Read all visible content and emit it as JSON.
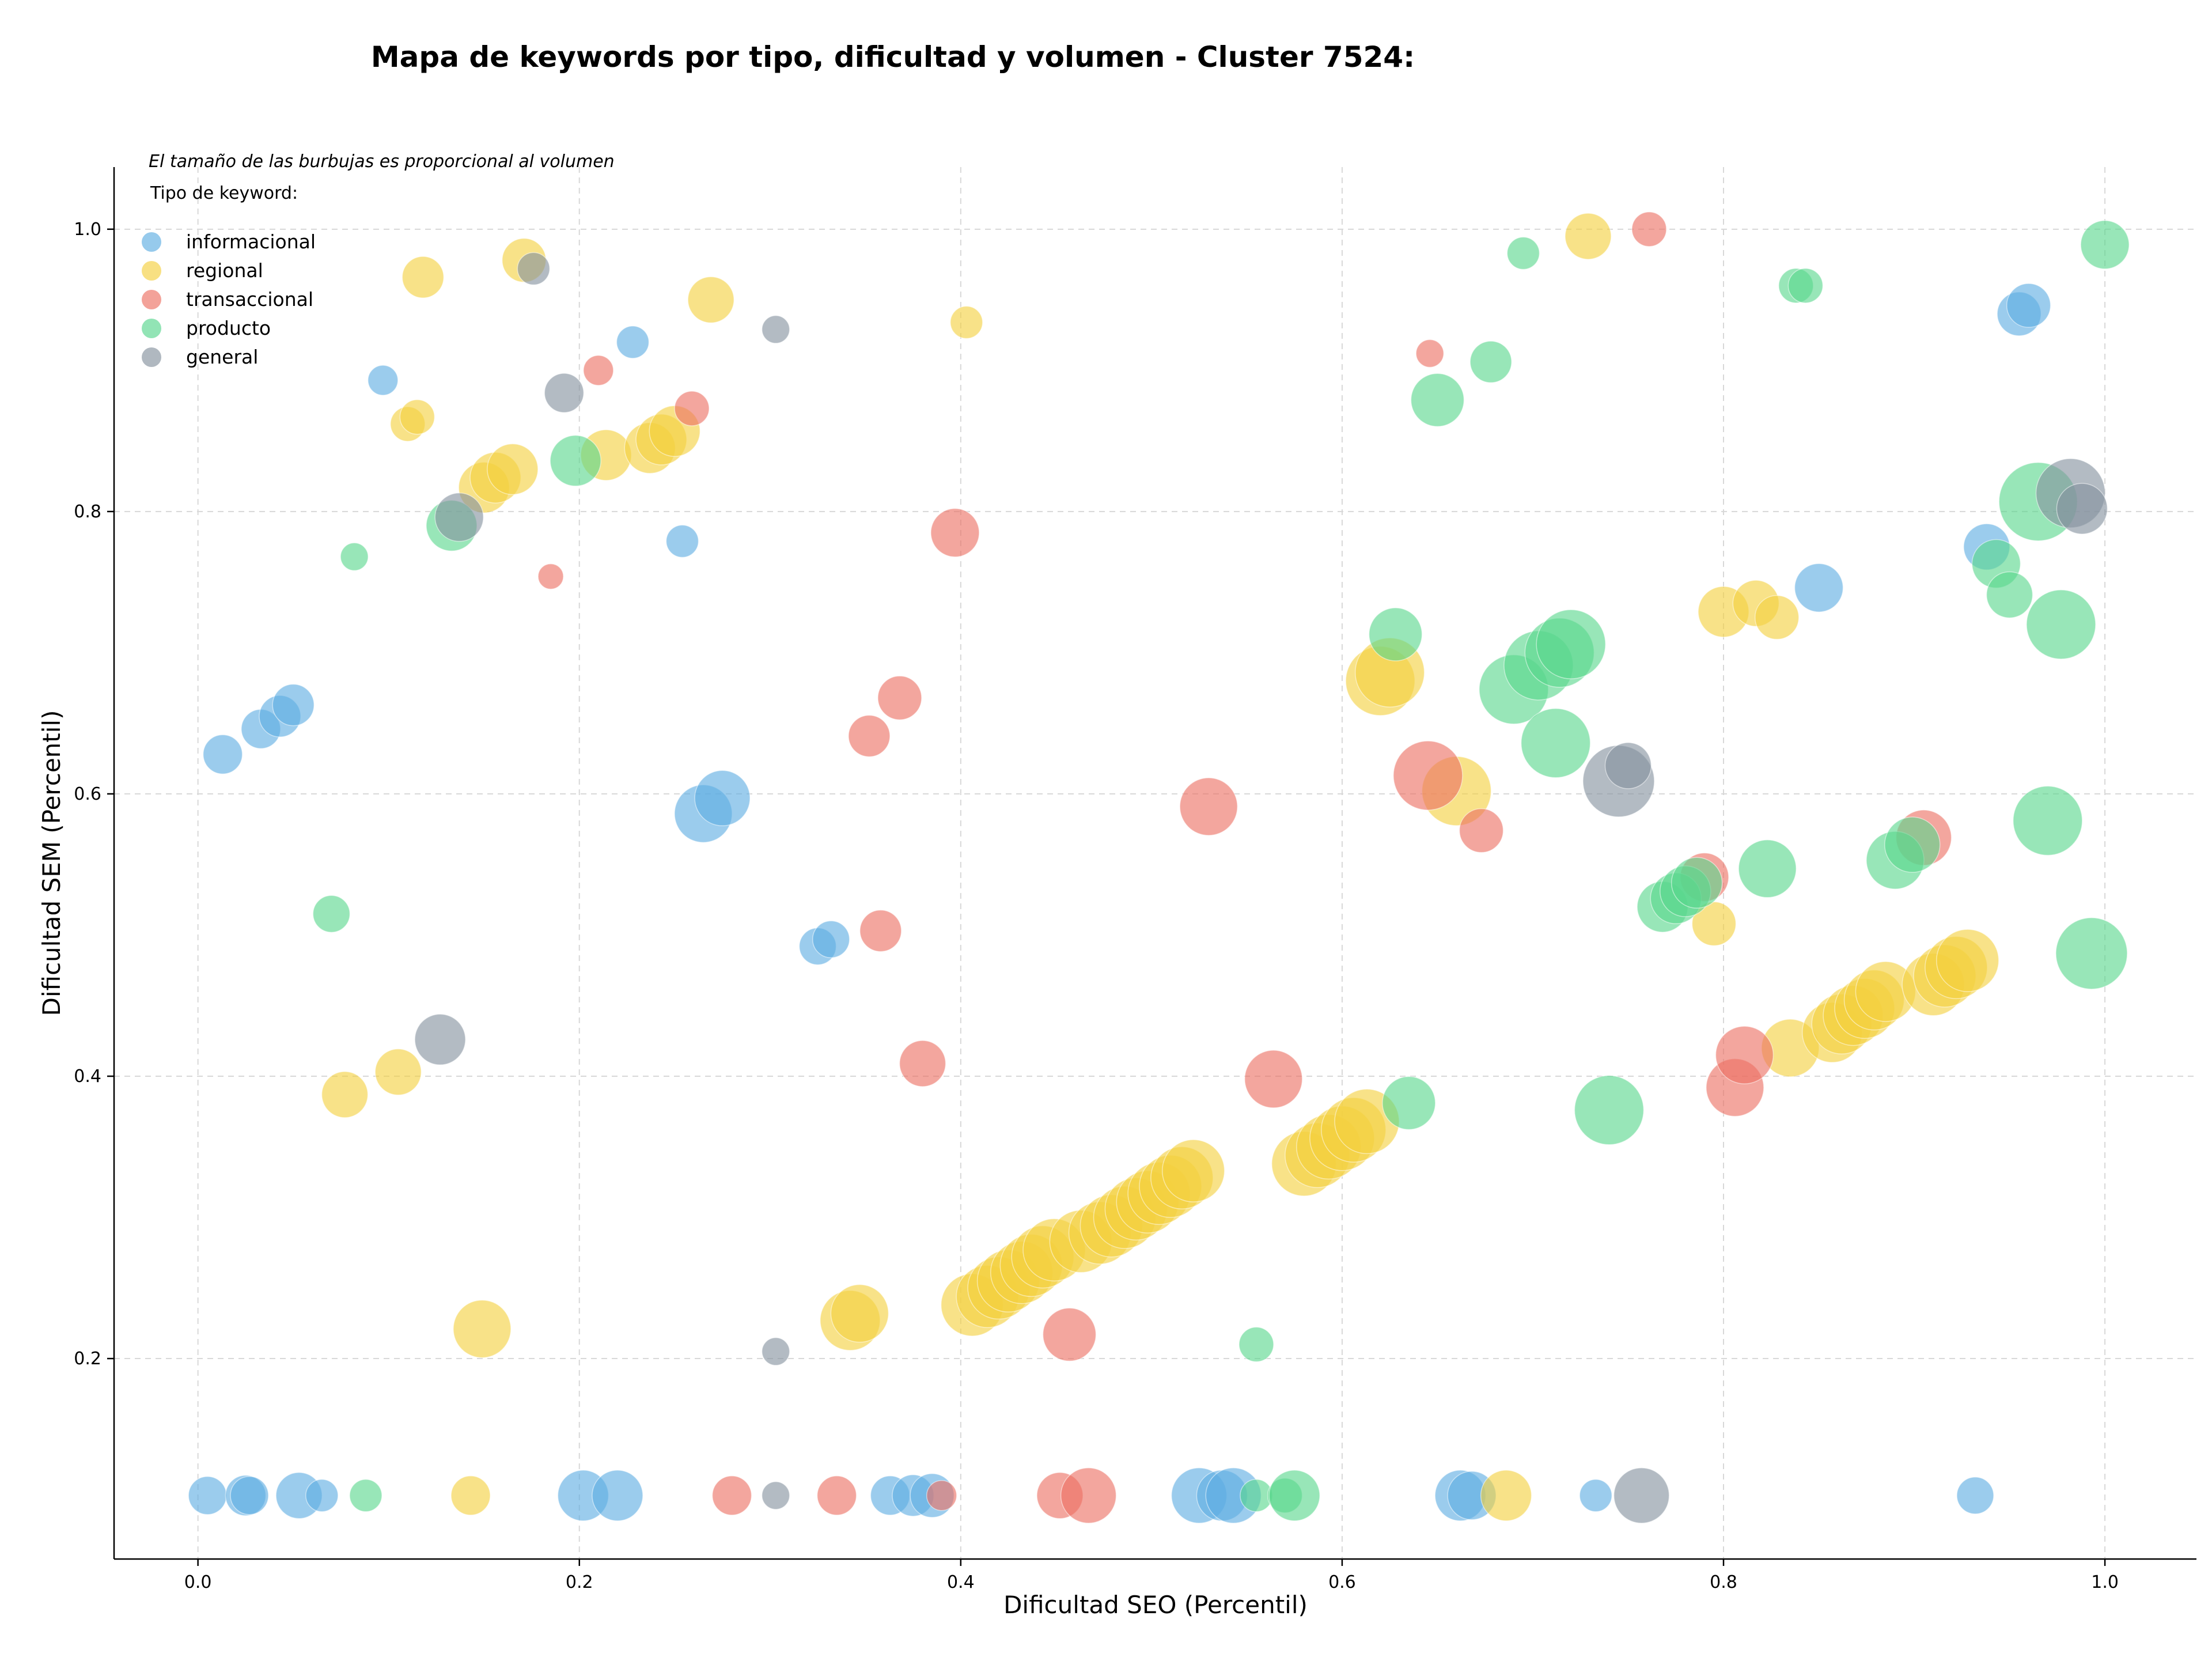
{
  "chart_data": {
    "type": "scatter",
    "title": "Mapa de keywords por tipo, dificultad y volumen - Cluster 7524:",
    "xlabel": "Dificultad SEO (Percentil)",
    "ylabel": "Dificultad SEM (Percentil)",
    "xlim": [
      -0.044,
      1.048
    ],
    "ylim": [
      0.058,
      1.044
    ],
    "x_ticks": [
      "0.0",
      "0.2",
      "0.4",
      "0.6",
      "0.8",
      "1.0"
    ],
    "y_ticks": [
      "0.2",
      "0.4",
      "0.6",
      "0.8",
      "1.0"
    ],
    "grid": true,
    "note": "El tamaño de las burbujas es proporcional al volumen",
    "legend_title": "Tipo de keyword:",
    "legend_position": "top-left",
    "series": [
      {
        "name": "informacional",
        "color": "#5dade2",
        "points": [
          {
            "x": 0.005,
            "y": 0.103,
            "s": 33
          },
          {
            "x": 0.025,
            "y": 0.103,
            "s": 35
          },
          {
            "x": 0.027,
            "y": 0.103,
            "s": 33
          },
          {
            "x": 0.053,
            "y": 0.103,
            "s": 40
          },
          {
            "x": 0.065,
            "y": 0.103,
            "s": 28
          },
          {
            "x": 0.202,
            "y": 0.103,
            "s": 44
          },
          {
            "x": 0.22,
            "y": 0.103,
            "s": 44
          },
          {
            "x": 0.363,
            "y": 0.103,
            "s": 34
          },
          {
            "x": 0.375,
            "y": 0.103,
            "s": 36
          },
          {
            "x": 0.385,
            "y": 0.103,
            "s": 38
          },
          {
            "x": 0.525,
            "y": 0.103,
            "s": 48
          },
          {
            "x": 0.537,
            "y": 0.103,
            "s": 44
          },
          {
            "x": 0.543,
            "y": 0.103,
            "s": 48
          },
          {
            "x": 0.662,
            "y": 0.103,
            "s": 44
          },
          {
            "x": 0.668,
            "y": 0.103,
            "s": 42
          },
          {
            "x": 0.733,
            "y": 0.103,
            "s": 28
          },
          {
            "x": 0.932,
            "y": 0.103,
            "s": 32
          },
          {
            "x": 0.013,
            "y": 0.628,
            "s": 34
          },
          {
            "x": 0.033,
            "y": 0.646,
            "s": 34
          },
          {
            "x": 0.043,
            "y": 0.655,
            "s": 36
          },
          {
            "x": 0.05,
            "y": 0.663,
            "s": 36
          },
          {
            "x": 0.097,
            "y": 0.893,
            "s": 26
          },
          {
            "x": 0.228,
            "y": 0.92,
            "s": 28
          },
          {
            "x": 0.254,
            "y": 0.779,
            "s": 28
          },
          {
            "x": 0.265,
            "y": 0.586,
            "s": 50
          },
          {
            "x": 0.275,
            "y": 0.597,
            "s": 48
          },
          {
            "x": 0.325,
            "y": 0.492,
            "s": 32
          },
          {
            "x": 0.332,
            "y": 0.497,
            "s": 32
          },
          {
            "x": 0.85,
            "y": 0.746,
            "s": 42
          },
          {
            "x": 0.938,
            "y": 0.775,
            "s": 40
          },
          {
            "x": 0.955,
            "y": 0.94,
            "s": 38
          },
          {
            "x": 0.96,
            "y": 0.946,
            "s": 38
          }
        ]
      },
      {
        "name": "regional",
        "color": "#f4d03f",
        "points": [
          {
            "x": 0.143,
            "y": 0.103,
            "s": 34
          },
          {
            "x": 0.686,
            "y": 0.103,
            "s": 44
          },
          {
            "x": 0.077,
            "y": 0.387,
            "s": 40
          },
          {
            "x": 0.105,
            "y": 0.403,
            "s": 40
          },
          {
            "x": 0.149,
            "y": 0.221,
            "s": 50
          },
          {
            "x": 0.118,
            "y": 0.966,
            "s": 36
          },
          {
            "x": 0.11,
            "y": 0.862,
            "s": 30
          },
          {
            "x": 0.115,
            "y": 0.867,
            "s": 30
          },
          {
            "x": 0.171,
            "y": 0.978,
            "s": 38
          },
          {
            "x": 0.15,
            "y": 0.817,
            "s": 44
          },
          {
            "x": 0.156,
            "y": 0.824,
            "s": 44
          },
          {
            "x": 0.165,
            "y": 0.83,
            "s": 44
          },
          {
            "x": 0.214,
            "y": 0.84,
            "s": 44
          },
          {
            "x": 0.237,
            "y": 0.845,
            "s": 44
          },
          {
            "x": 0.243,
            "y": 0.851,
            "s": 44
          },
          {
            "x": 0.25,
            "y": 0.857,
            "s": 44
          },
          {
            "x": 0.269,
            "y": 0.95,
            "s": 40
          },
          {
            "x": 0.403,
            "y": 0.934,
            "s": 28
          },
          {
            "x": 0.342,
            "y": 0.227,
            "s": 52
          },
          {
            "x": 0.347,
            "y": 0.232,
            "s": 50
          },
          {
            "x": 0.406,
            "y": 0.238,
            "s": 54
          },
          {
            "x": 0.414,
            "y": 0.244,
            "s": 54
          },
          {
            "x": 0.42,
            "y": 0.25,
            "s": 54
          },
          {
            "x": 0.425,
            "y": 0.255,
            "s": 54
          },
          {
            "x": 0.432,
            "y": 0.261,
            "s": 54
          },
          {
            "x": 0.437,
            "y": 0.266,
            "s": 54
          },
          {
            "x": 0.443,
            "y": 0.272,
            "s": 54
          },
          {
            "x": 0.449,
            "y": 0.277,
            "s": 54
          },
          {
            "x": 0.463,
            "y": 0.283,
            "s": 54
          },
          {
            "x": 0.473,
            "y": 0.289,
            "s": 54
          },
          {
            "x": 0.479,
            "y": 0.294,
            "s": 54
          },
          {
            "x": 0.486,
            "y": 0.3,
            "s": 54
          },
          {
            "x": 0.492,
            "y": 0.306,
            "s": 54
          },
          {
            "x": 0.498,
            "y": 0.311,
            "s": 54
          },
          {
            "x": 0.504,
            "y": 0.317,
            "s": 54
          },
          {
            "x": 0.51,
            "y": 0.322,
            "s": 54
          },
          {
            "x": 0.516,
            "y": 0.328,
            "s": 54
          },
          {
            "x": 0.522,
            "y": 0.333,
            "s": 54
          },
          {
            "x": 0.58,
            "y": 0.338,
            "s": 56
          },
          {
            "x": 0.587,
            "y": 0.344,
            "s": 56
          },
          {
            "x": 0.593,
            "y": 0.35,
            "s": 56
          },
          {
            "x": 0.6,
            "y": 0.356,
            "s": 56
          },
          {
            "x": 0.606,
            "y": 0.362,
            "s": 56
          },
          {
            "x": 0.613,
            "y": 0.368,
            "s": 56
          },
          {
            "x": 0.62,
            "y": 0.68,
            "s": 60
          },
          {
            "x": 0.625,
            "y": 0.686,
            "s": 60
          },
          {
            "x": 0.66,
            "y": 0.602,
            "s": 60
          },
          {
            "x": 0.729,
            "y": 0.995,
            "s": 40
          },
          {
            "x": 0.795,
            "y": 0.508,
            "s": 38
          },
          {
            "x": 0.8,
            "y": 0.729,
            "s": 44
          },
          {
            "x": 0.817,
            "y": 0.735,
            "s": 40
          },
          {
            "x": 0.828,
            "y": 0.725,
            "s": 38
          },
          {
            "x": 0.835,
            "y": 0.42,
            "s": 50
          },
          {
            "x": 0.857,
            "y": 0.431,
            "s": 52
          },
          {
            "x": 0.862,
            "y": 0.437,
            "s": 52
          },
          {
            "x": 0.868,
            "y": 0.443,
            "s": 52
          },
          {
            "x": 0.874,
            "y": 0.448,
            "s": 52
          },
          {
            "x": 0.879,
            "y": 0.454,
            "s": 52
          },
          {
            "x": 0.885,
            "y": 0.46,
            "s": 52
          },
          {
            "x": 0.91,
            "y": 0.465,
            "s": 54
          },
          {
            "x": 0.916,
            "y": 0.471,
            "s": 54
          },
          {
            "x": 0.922,
            "y": 0.477,
            "s": 54
          },
          {
            "x": 0.928,
            "y": 0.482,
            "s": 54
          }
        ]
      },
      {
        "name": "transaccional",
        "color": "#ec7063",
        "points": [
          {
            "x": 0.28,
            "y": 0.103,
            "s": 34
          },
          {
            "x": 0.335,
            "y": 0.103,
            "s": 34
          },
          {
            "x": 0.39,
            "y": 0.103,
            "s": 26
          },
          {
            "x": 0.452,
            "y": 0.103,
            "s": 40
          },
          {
            "x": 0.467,
            "y": 0.103,
            "s": 48
          },
          {
            "x": 0.185,
            "y": 0.754,
            "s": 22
          },
          {
            "x": 0.21,
            "y": 0.9,
            "s": 26
          },
          {
            "x": 0.259,
            "y": 0.873,
            "s": 30
          },
          {
            "x": 0.352,
            "y": 0.641,
            "s": 36
          },
          {
            "x": 0.368,
            "y": 0.668,
            "s": 38
          },
          {
            "x": 0.358,
            "y": 0.503,
            "s": 36
          },
          {
            "x": 0.38,
            "y": 0.409,
            "s": 40
          },
          {
            "x": 0.397,
            "y": 0.785,
            "s": 42
          },
          {
            "x": 0.457,
            "y": 0.217,
            "s": 46
          },
          {
            "x": 0.53,
            "y": 0.591,
            "s": 50
          },
          {
            "x": 0.564,
            "y": 0.398,
            "s": 50
          },
          {
            "x": 0.645,
            "y": 0.613,
            "s": 60
          },
          {
            "x": 0.646,
            "y": 0.912,
            "s": 24
          },
          {
            "x": 0.673,
            "y": 0.574,
            "s": 38
          },
          {
            "x": 0.761,
            "y": 1.0,
            "s": 30
          },
          {
            "x": 0.79,
            "y": 0.541,
            "s": 42
          },
          {
            "x": 0.806,
            "y": 0.392,
            "s": 50
          },
          {
            "x": 0.811,
            "y": 0.415,
            "s": 50
          },
          {
            "x": 0.905,
            "y": 0.569,
            "s": 48
          }
        ]
      },
      {
        "name": "producto",
        "color": "#58d68d",
        "points": [
          {
            "x": 0.088,
            "y": 0.103,
            "s": 28
          },
          {
            "x": 0.555,
            "y": 0.103,
            "s": 28
          },
          {
            "x": 0.57,
            "y": 0.103,
            "s": 30
          },
          {
            "x": 0.575,
            "y": 0.103,
            "s": 44
          },
          {
            "x": 0.07,
            "y": 0.515,
            "s": 32
          },
          {
            "x": 0.082,
            "y": 0.768,
            "s": 24
          },
          {
            "x": 0.133,
            "y": 0.79,
            "s": 44
          },
          {
            "x": 0.198,
            "y": 0.836,
            "s": 44
          },
          {
            "x": 0.555,
            "y": 0.21,
            "s": 30
          },
          {
            "x": 0.628,
            "y": 0.713,
            "s": 46
          },
          {
            "x": 0.635,
            "y": 0.381,
            "s": 46
          },
          {
            "x": 0.65,
            "y": 0.879,
            "s": 46
          },
          {
            "x": 0.678,
            "y": 0.906,
            "s": 36
          },
          {
            "x": 0.695,
            "y": 0.983,
            "s": 28
          },
          {
            "x": 0.69,
            "y": 0.674,
            "s": 60
          },
          {
            "x": 0.703,
            "y": 0.691,
            "s": 60
          },
          {
            "x": 0.712,
            "y": 0.636,
            "s": 60
          },
          {
            "x": 0.714,
            "y": 0.7,
            "s": 60
          },
          {
            "x": 0.72,
            "y": 0.706,
            "s": 60
          },
          {
            "x": 0.74,
            "y": 0.376,
            "s": 60
          },
          {
            "x": 0.768,
            "y": 0.52,
            "s": 44
          },
          {
            "x": 0.775,
            "y": 0.526,
            "s": 44
          },
          {
            "x": 0.78,
            "y": 0.531,
            "s": 44
          },
          {
            "x": 0.786,
            "y": 0.537,
            "s": 44
          },
          {
            "x": 0.823,
            "y": 0.547,
            "s": 50
          },
          {
            "x": 0.838,
            "y": 0.96,
            "s": 30
          },
          {
            "x": 0.843,
            "y": 0.96,
            "s": 30
          },
          {
            "x": 0.89,
            "y": 0.553,
            "s": 50
          },
          {
            "x": 0.899,
            "y": 0.564,
            "s": 48
          },
          {
            "x": 0.943,
            "y": 0.763,
            "s": 42
          },
          {
            "x": 0.95,
            "y": 0.741,
            "s": 40
          },
          {
            "x": 0.965,
            "y": 0.807,
            "s": 68
          },
          {
            "x": 0.97,
            "y": 0.581,
            "s": 60
          },
          {
            "x": 0.977,
            "y": 0.72,
            "s": 60
          },
          {
            "x": 0.993,
            "y": 0.487,
            "s": 62
          },
          {
            "x": 1.0,
            "y": 0.989,
            "s": 42
          }
        ]
      },
      {
        "name": "general",
        "color": "#85929e",
        "points": [
          {
            "x": 0.303,
            "y": 0.103,
            "s": 24
          },
          {
            "x": 0.757,
            "y": 0.103,
            "s": 48
          },
          {
            "x": 0.127,
            "y": 0.426,
            "s": 44
          },
          {
            "x": 0.137,
            "y": 0.796,
            "s": 42
          },
          {
            "x": 0.176,
            "y": 0.972,
            "s": 28
          },
          {
            "x": 0.192,
            "y": 0.884,
            "s": 34
          },
          {
            "x": 0.303,
            "y": 0.205,
            "s": 24
          },
          {
            "x": 0.303,
            "y": 0.929,
            "s": 24
          },
          {
            "x": 0.745,
            "y": 0.609,
            "s": 62
          },
          {
            "x": 0.75,
            "y": 0.62,
            "s": 40
          },
          {
            "x": 0.982,
            "y": 0.813,
            "s": 60
          },
          {
            "x": 0.988,
            "y": 0.802,
            "s": 44
          }
        ]
      }
    ]
  }
}
